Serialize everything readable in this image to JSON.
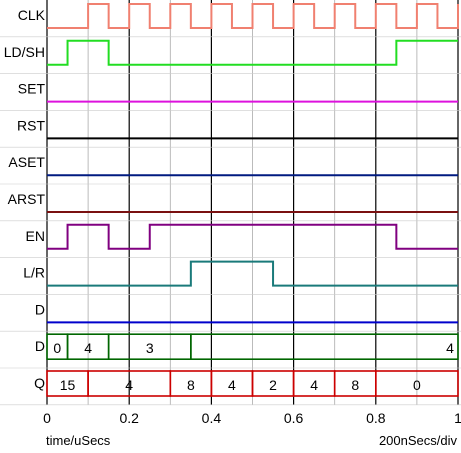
{
  "signals": [
    {
      "name": "CLK",
      "color": "#f08070",
      "kind": "wave",
      "levels": [
        [
          0,
          0
        ],
        [
          0.1,
          1
        ],
        [
          0.15,
          0
        ],
        [
          0.2,
          1
        ],
        [
          0.25,
          0
        ],
        [
          0.3,
          1
        ],
        [
          0.35,
          0
        ],
        [
          0.4,
          1
        ],
        [
          0.45,
          0
        ],
        [
          0.5,
          1
        ],
        [
          0.55,
          0
        ],
        [
          0.6,
          1
        ],
        [
          0.65,
          0
        ],
        [
          0.7,
          1
        ],
        [
          0.75,
          0
        ],
        [
          0.8,
          1
        ],
        [
          0.85,
          0
        ],
        [
          0.9,
          1
        ],
        [
          0.95,
          0
        ],
        [
          1.0,
          1
        ]
      ]
    },
    {
      "name": "LD/SH",
      "color": "#22dd22",
      "kind": "wave",
      "levels": [
        [
          0,
          0
        ],
        [
          0.05,
          1
        ],
        [
          0.15,
          0
        ],
        [
          0.85,
          1
        ]
      ]
    },
    {
      "name": "SET",
      "color": "#dd11dd",
      "kind": "wave",
      "levels": [
        [
          0,
          0
        ]
      ]
    },
    {
      "name": "RST",
      "color": "#000000",
      "kind": "wave",
      "levels": [
        [
          0,
          0
        ]
      ]
    },
    {
      "name": "ASET",
      "color": "#001a80",
      "kind": "wave",
      "levels": [
        [
          0,
          0
        ]
      ]
    },
    {
      "name": "ARST",
      "color": "#7a1010",
      "kind": "wave",
      "levels": [
        [
          0,
          0
        ]
      ]
    },
    {
      "name": "EN",
      "color": "#800080",
      "kind": "wave",
      "levels": [
        [
          0,
          0
        ],
        [
          0.05,
          1
        ],
        [
          0.15,
          0
        ],
        [
          0.25,
          1
        ],
        [
          0.85,
          0
        ]
      ]
    },
    {
      "name": "L/R",
      "color": "#1a7a7a",
      "kind": "wave",
      "levels": [
        [
          0,
          0
        ],
        [
          0.35,
          1
        ],
        [
          0.55,
          0
        ]
      ]
    },
    {
      "name": "D",
      "color": "#0000cc",
      "kind": "wave",
      "levels": [
        [
          0,
          0
        ]
      ]
    },
    {
      "name": "D",
      "color": "#006600",
      "kind": "bus",
      "segments": [
        [
          0,
          0.05,
          "0"
        ],
        [
          0.05,
          0.15,
          "4"
        ],
        [
          0.15,
          0.35,
          "3"
        ],
        [
          0.35,
          1.0,
          "4"
        ]
      ]
    },
    {
      "name": "Q",
      "color": "#cc0000",
      "kind": "bus",
      "segments": [
        [
          0,
          0.1,
          "15"
        ],
        [
          0.1,
          0.3,
          "4"
        ],
        [
          0.3,
          0.4,
          "8"
        ],
        [
          0.4,
          0.5,
          "4"
        ],
        [
          0.5,
          0.6,
          "2"
        ],
        [
          0.6,
          0.7,
          "4"
        ],
        [
          0.7,
          0.8,
          "8"
        ],
        [
          0.8,
          1.0,
          "0"
        ]
      ]
    }
  ],
  "axis": {
    "ticks": [
      "0",
      "0.2",
      "0.4",
      "0.6",
      "0.8",
      "1"
    ],
    "tick_values": [
      0,
      0.2,
      0.4,
      0.6,
      0.8,
      1.0
    ],
    "unit_label": "time/uSecs",
    "div_label": "200nSecs/div"
  },
  "grid": {
    "color": "#888888",
    "step": 0.1,
    "on": true
  }
}
